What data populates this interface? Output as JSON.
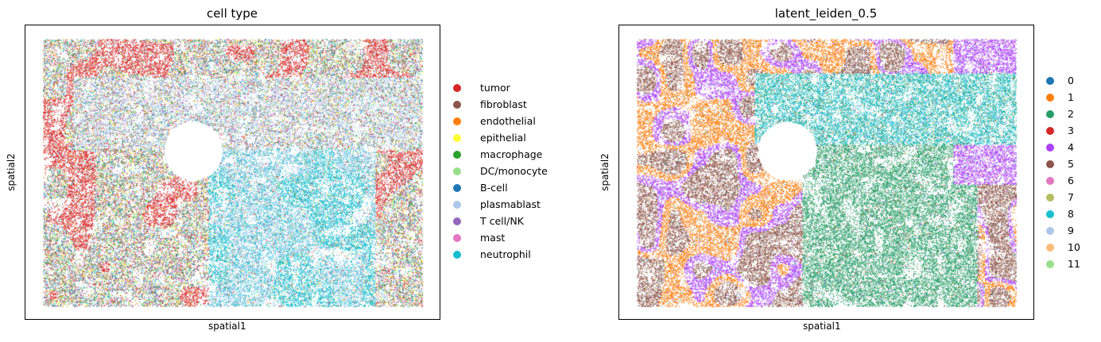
{
  "chart_data": [
    {
      "type": "scatter",
      "title": "cell type",
      "xlabel": "spatial1",
      "ylabel": "spatial2",
      "legend_position": "right",
      "series": [
        {
          "name": "tumor",
          "color": "#d62728",
          "share": 0.3
        },
        {
          "name": "fibroblast",
          "color": "#8c564b",
          "share": 0.08
        },
        {
          "name": "endothelial",
          "color": "#ff7f0e",
          "share": 0.09
        },
        {
          "name": "epithelial",
          "color": "#ffff33",
          "share": 0.04
        },
        {
          "name": "macrophage",
          "color": "#2ca02c",
          "share": 0.06
        },
        {
          "name": "DC/monocyte",
          "color": "#98df8a",
          "share": 0.04
        },
        {
          "name": "B-cell",
          "color": "#1f77b4",
          "share": 0.08
        },
        {
          "name": "plasmablast",
          "color": "#aec7e8",
          "share": 0.11
        },
        {
          "name": "T cell/NK",
          "color": "#9467bd",
          "share": 0.06
        },
        {
          "name": "mast",
          "color": "#e377c2",
          "share": 0.02
        },
        {
          "name": "neutrophil",
          "color": "#17becf",
          "share": 0.12
        }
      ]
    },
    {
      "type": "scatter",
      "title": "latent_leiden_0.5",
      "xlabel": "spatial1",
      "ylabel": "spatial2",
      "legend_position": "right",
      "series": [
        {
          "name": "0",
          "color": "#1f77b4",
          "share": 0.01
        },
        {
          "name": "1",
          "color": "#ff7f0e",
          "share": 0.12
        },
        {
          "name": "2",
          "color": "#279e68",
          "share": 0.3
        },
        {
          "name": "3",
          "color": "#d62728",
          "share": 0.03
        },
        {
          "name": "4",
          "color": "#aa40fc",
          "share": 0.13
        },
        {
          "name": "5",
          "color": "#8c564b",
          "share": 0.24
        },
        {
          "name": "6",
          "color": "#e377c2",
          "share": 0.01
        },
        {
          "name": "7",
          "color": "#b5bd61",
          "share": 0.01
        },
        {
          "name": "8",
          "color": "#17becf",
          "share": 0.13
        },
        {
          "name": "9",
          "color": "#aec7e8",
          "share": 0.01
        },
        {
          "name": "10",
          "color": "#ffbb78",
          "share": 0.005
        },
        {
          "name": "11",
          "color": "#98df8a",
          "share": 0.005
        }
      ]
    }
  ]
}
